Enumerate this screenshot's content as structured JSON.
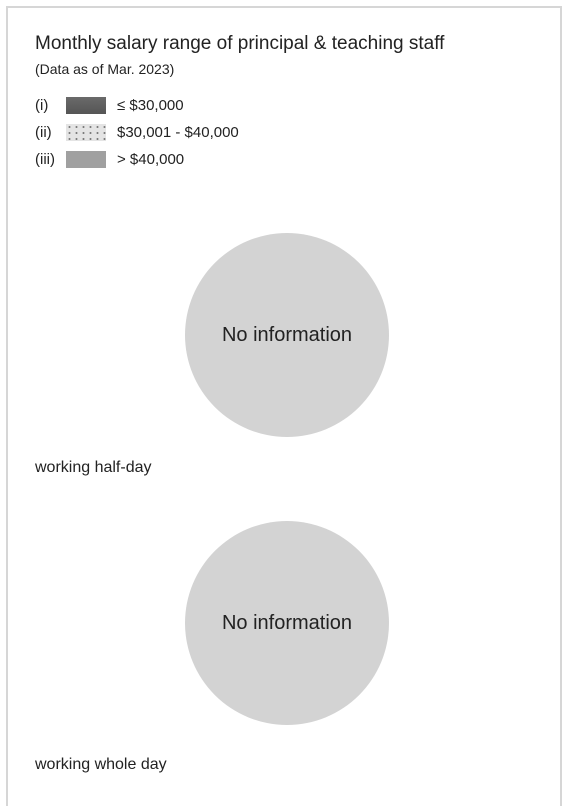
{
  "header": {
    "title": "Monthly salary range of principal & teaching staff",
    "subtitle": "(Data as of Mar. 2023)"
  },
  "legend": [
    {
      "marker": "(i)",
      "label": "≤ $30,000"
    },
    {
      "marker": "(ii)",
      "label": "$30,001 - $40,000"
    },
    {
      "marker": "(iii)",
      "label": "> $40,000"
    }
  ],
  "sections": [
    {
      "placeholder": "No information",
      "caption": "working half-day"
    },
    {
      "placeholder": "No information",
      "caption": "working whole day"
    }
  ]
}
